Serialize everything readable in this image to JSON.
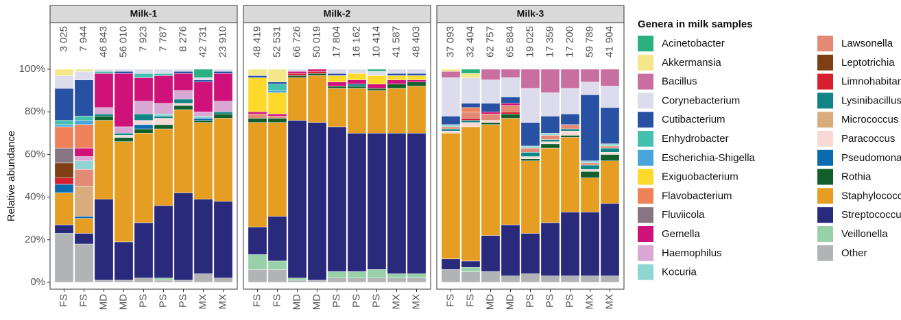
{
  "chart_data": {
    "type": "bar",
    "stacked": true,
    "ylabel": "Relative abundance",
    "ylim": [
      0,
      100
    ],
    "yticks": [
      {
        "value": 0,
        "label": "0%"
      },
      {
        "value": 20,
        "label": "20%"
      },
      {
        "value": 40,
        "label": "40%"
      },
      {
        "value": 60,
        "label": "60%"
      },
      {
        "value": 80,
        "label": "80%"
      },
      {
        "value": 100,
        "label": "100%"
      }
    ],
    "grid": false,
    "facets": [
      {
        "title": "Milk-1",
        "categories": [
          "FS",
          "FS",
          "MD",
          "MD",
          "PS",
          "PS",
          "PS",
          "MX",
          "MX"
        ],
        "read_counts": [
          "3 025",
          "7 944",
          "46 843",
          "56 010",
          "7 923",
          "7 787",
          "8 276",
          "42 731",
          "23 910"
        ]
      },
      {
        "title": "Milk-2",
        "categories": [
          "FS",
          "FS",
          "MD",
          "MD",
          "PS",
          "PS",
          "PS",
          "MX",
          "MX"
        ],
        "read_counts": [
          "48 419",
          "52 531",
          "66 726",
          "50 019",
          "17 804",
          "16 162",
          "10 414",
          "41 587",
          "48 403"
        ]
      },
      {
        "title": "Milk-3",
        "categories": [
          "FS",
          "FS",
          "MD",
          "MD",
          "PS",
          "PS",
          "PS",
          "MX",
          "MX"
        ],
        "read_counts": [
          "37 093",
          "32 404",
          "62 757",
          "65 884",
          "19 025",
          "17 359",
          "17 200",
          "59 789",
          "41 904"
        ]
      }
    ],
    "legend": {
      "title": "Genera in milk samples",
      "position": "right"
    },
    "series": [
      {
        "name": "Acinetobacter",
        "color": "#2bb07f",
        "values": [
          0,
          0,
          0,
          0,
          0,
          0,
          0,
          4,
          0,
          0,
          0,
          0,
          0,
          0,
          0,
          1,
          0,
          0,
          0,
          2,
          0,
          0,
          0,
          0,
          0,
          0,
          0
        ]
      },
      {
        "name": "Akkermansia",
        "color": "#f4e78a",
        "values": [
          3,
          1,
          0,
          0,
          0,
          0,
          0,
          0,
          0,
          3,
          6,
          0,
          0,
          0,
          0,
          0,
          0,
          0,
          1,
          2,
          0,
          0,
          0,
          0,
          0,
          0,
          0
        ]
      },
      {
        "name": "Bacillus",
        "color": "#c96f9f",
        "values": [
          0,
          0,
          0,
          0,
          0,
          0,
          0,
          0,
          0,
          0,
          0,
          0,
          0,
          0,
          0,
          0,
          0,
          0,
          3,
          0,
          5,
          4,
          9,
          11,
          9,
          6,
          8
        ]
      },
      {
        "name": "Corynebacterium",
        "color": "#dcdcec",
        "values": [
          6,
          4,
          1,
          1,
          2,
          2,
          1,
          1,
          1,
          0,
          0,
          1,
          0,
          2,
          2,
          2,
          2,
          2,
          18,
          12,
          11,
          9,
          16,
          11,
          12,
          6,
          10
        ]
      },
      {
        "name": "Cutibacterium",
        "color": "#2851a3",
        "values": [
          15,
          17,
          0,
          1,
          0,
          0,
          1,
          1,
          1,
          1,
          1,
          0,
          0,
          1,
          0,
          0,
          1,
          1,
          4,
          2,
          4,
          3,
          11,
          8,
          5,
          31,
          17
        ]
      },
      {
        "name": "Enhydrobacter",
        "color": "#44c0ae",
        "values": [
          2,
          2,
          1,
          0,
          2,
          1,
          0,
          0,
          0,
          0,
          3,
          0,
          0,
          0,
          0,
          0,
          0,
          0,
          0,
          0,
          0,
          0,
          0,
          0,
          0,
          0,
          0
        ]
      },
      {
        "name": "Escherichia-Shigella",
        "color": "#48a6dd",
        "values": [
          1,
          2,
          0,
          0,
          0,
          0,
          0,
          0,
          0,
          0,
          1,
          0,
          0,
          0,
          0,
          0,
          0,
          0,
          0,
          0,
          0,
          0,
          0,
          0,
          0,
          0,
          0
        ]
      },
      {
        "name": "Exiguobacterium",
        "color": "#fcd92a",
        "values": [
          0,
          0,
          0,
          0,
          0,
          0,
          0,
          0,
          0,
          16,
          10,
          0,
          0,
          3,
          3,
          4,
          2,
          2,
          0,
          0,
          0,
          0,
          0,
          0,
          0,
          0,
          0
        ]
      },
      {
        "name": "Flavobacterium",
        "color": "#f08259",
        "values": [
          10,
          11,
          0,
          0,
          0,
          0,
          0,
          0,
          0,
          0,
          0,
          0,
          0,
          0,
          0,
          0,
          0,
          0,
          0,
          2,
          0,
          0,
          0,
          0,
          0,
          0,
          0
        ]
      },
      {
        "name": "Fluviicola",
        "color": "#857681",
        "values": [
          7,
          0,
          0,
          0,
          0,
          0,
          0,
          0,
          0,
          0,
          0,
          0,
          0,
          0,
          0,
          0,
          0,
          0,
          0,
          0,
          0,
          0,
          0,
          0,
          0,
          0,
          0
        ]
      },
      {
        "name": "Gemella",
        "color": "#cf127a",
        "values": [
          0,
          4,
          16,
          25,
          11,
          13,
          8,
          14,
          13,
          1,
          1,
          1,
          1,
          2,
          2,
          2,
          2,
          1,
          0,
          0,
          1,
          1,
          0,
          0,
          0,
          0,
          0
        ]
      },
      {
        "name": "Haemophilus",
        "color": "#d8a7d3",
        "values": [
          0,
          2,
          3,
          3,
          6,
          5,
          4,
          2,
          5,
          0,
          0,
          0,
          0,
          0,
          0,
          0,
          0,
          0,
          0,
          0,
          0,
          0,
          0,
          0,
          0,
          0,
          0
        ]
      },
      {
        "name": "Kocuria",
        "color": "#91d4d4",
        "values": [
          0,
          4,
          0,
          0,
          0,
          1,
          0,
          1,
          0,
          0,
          0,
          0,
          0,
          0,
          0,
          0,
          0,
          0,
          1,
          0,
          0,
          0,
          1,
          1,
          0,
          1,
          1
        ]
      },
      {
        "name": "Lawsonella",
        "color": "#e28a76",
        "values": [
          0,
          8,
          0,
          0,
          0,
          0,
          0,
          0,
          0,
          2,
          1,
          0,
          0,
          0,
          0,
          0,
          0,
          0,
          1,
          3,
          3,
          3,
          2,
          2,
          2,
          1,
          1
        ]
      },
      {
        "name": "Leptotrichia",
        "color": "#7e3f14",
        "values": [
          7,
          0,
          0,
          0,
          0,
          0,
          0,
          0,
          0,
          0,
          0,
          0,
          0,
          0,
          0,
          0,
          0,
          0,
          0,
          0,
          0,
          0,
          0,
          0,
          0,
          0,
          0
        ]
      },
      {
        "name": "Limnohabitans",
        "color": "#d61f2f",
        "values": [
          3,
          0,
          0,
          0,
          0,
          0,
          0,
          0,
          0,
          0,
          0,
          1,
          1,
          0,
          0,
          0,
          0,
          0,
          0,
          1,
          0,
          1,
          0,
          0,
          0,
          0,
          0
        ]
      },
      {
        "name": "Lysinibacillus",
        "color": "#0f8585",
        "values": [
          0,
          0,
          1,
          1,
          3,
          1,
          2,
          0,
          1,
          0,
          0,
          0,
          0,
          0,
          1,
          0,
          0,
          0,
          1,
          1,
          0,
          0,
          2,
          1,
          1,
          2,
          2
        ]
      },
      {
        "name": "Micrococcus",
        "color": "#d9ac7e",
        "values": [
          0,
          14,
          0,
          0,
          0,
          0,
          0,
          0,
          0,
          0,
          0,
          0,
          0,
          0,
          0,
          0,
          0,
          0,
          0,
          0,
          0,
          0,
          0,
          0,
          0,
          0,
          0
        ]
      },
      {
        "name": "Paracoccus",
        "color": "#f8d9d6",
        "values": [
          0,
          0,
          0,
          1,
          2,
          3,
          1,
          0,
          0,
          0,
          0,
          0,
          0,
          0,
          0,
          0,
          0,
          0,
          1,
          2,
          1,
          0,
          1,
          1,
          2,
          1,
          1
        ]
      },
      {
        "name": "Pseudomonas",
        "color": "#0b6bb0",
        "values": [
          4,
          1,
          0,
          0,
          2,
          0,
          0,
          1,
          0,
          0,
          0,
          0,
          0,
          0,
          0,
          0,
          0,
          0,
          0,
          0,
          0,
          0,
          0,
          0,
          0,
          0,
          0
        ]
      },
      {
        "name": "Rothia",
        "color": "#135f2b",
        "values": [
          0,
          0,
          2,
          2,
          2,
          2,
          2,
          1,
          2,
          2,
          2,
          1,
          1,
          1,
          1,
          1,
          2,
          2,
          0,
          0,
          1,
          2,
          1,
          2,
          1,
          3,
          3
        ]
      },
      {
        "name": "Staphylococcus",
        "color": "#e59e21",
        "values": [
          15,
          7,
          37,
          47,
          42,
          36,
          39,
          36,
          39,
          49,
          44,
          20,
          22,
          18,
          21,
          20,
          21,
          22,
          59,
          63,
          52,
          50,
          34,
          35,
          35,
          16,
          20
        ]
      },
      {
        "name": "Streptococcus",
        "color": "#2a2a7d",
        "values": [
          4,
          5,
          38,
          18,
          26,
          34,
          41,
          35,
          36,
          13,
          21,
          74,
          74,
          68,
          65,
          64,
          66,
          66,
          5,
          3,
          17,
          24,
          19,
          25,
          30,
          30,
          34
        ]
      },
      {
        "name": "Veillonella",
        "color": "#98d1a7",
        "values": [
          0,
          0,
          0,
          0,
          0,
          1,
          0,
          0,
          0,
          7,
          4,
          1,
          0,
          3,
          3,
          4,
          2,
          2,
          0,
          2,
          0,
          0,
          0,
          0,
          0,
          0,
          0
        ]
      },
      {
        "name": "Other",
        "color": "#b2b3b5",
        "values": [
          23,
          18,
          1,
          1,
          2,
          1,
          1,
          4,
          2,
          6,
          6,
          1,
          1,
          2,
          2,
          2,
          2,
          2,
          6,
          5,
          5,
          3,
          4,
          3,
          3,
          3,
          3
        ]
      }
    ]
  }
}
